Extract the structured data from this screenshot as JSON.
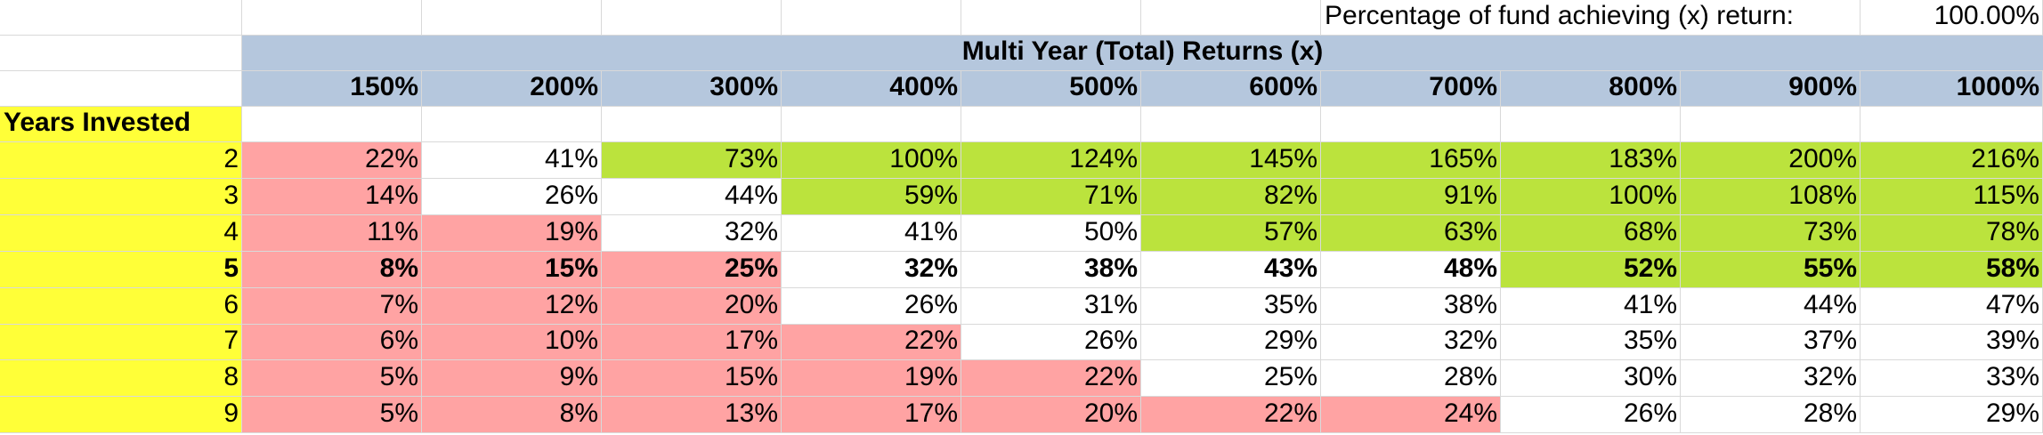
{
  "header": {
    "pct_label": "Percentage of fund achieving (x) return:",
    "pct_value": "100.00%",
    "title": "Multi Year (Total) Returns (x)",
    "row_header": "Years Invested"
  },
  "columns": [
    "150%",
    "200%",
    "300%",
    "400%",
    "500%",
    "600%",
    "700%",
    "800%",
    "900%",
    "1000%"
  ],
  "rows": [
    {
      "year": "2",
      "bold": false,
      "values": [
        "22%",
        "41%",
        "73%",
        "100%",
        "124%",
        "145%",
        "165%",
        "183%",
        "200%",
        "216%"
      ],
      "fills": [
        "pink",
        "white",
        "green",
        "green",
        "green",
        "green",
        "green",
        "green",
        "green",
        "green"
      ]
    },
    {
      "year": "3",
      "bold": false,
      "values": [
        "14%",
        "26%",
        "44%",
        "59%",
        "71%",
        "82%",
        "91%",
        "100%",
        "108%",
        "115%"
      ],
      "fills": [
        "pink",
        "white",
        "white",
        "green",
        "green",
        "green",
        "green",
        "green",
        "green",
        "green"
      ]
    },
    {
      "year": "4",
      "bold": false,
      "values": [
        "11%",
        "19%",
        "32%",
        "41%",
        "50%",
        "57%",
        "63%",
        "68%",
        "73%",
        "78%"
      ],
      "fills": [
        "pink",
        "pink",
        "white",
        "white",
        "white",
        "green",
        "green",
        "green",
        "green",
        "green"
      ]
    },
    {
      "year": "5",
      "bold": true,
      "values": [
        "8%",
        "15%",
        "25%",
        "32%",
        "38%",
        "43%",
        "48%",
        "52%",
        "55%",
        "58%"
      ],
      "fills": [
        "pink",
        "pink",
        "pink",
        "white",
        "white",
        "white",
        "white",
        "green",
        "green",
        "green"
      ]
    },
    {
      "year": "6",
      "bold": false,
      "values": [
        "7%",
        "12%",
        "20%",
        "26%",
        "31%",
        "35%",
        "38%",
        "41%",
        "44%",
        "47%"
      ],
      "fills": [
        "pink",
        "pink",
        "pink",
        "white",
        "white",
        "white",
        "white",
        "white",
        "white",
        "white"
      ]
    },
    {
      "year": "7",
      "bold": false,
      "values": [
        "6%",
        "10%",
        "17%",
        "22%",
        "26%",
        "29%",
        "32%",
        "35%",
        "37%",
        "39%"
      ],
      "fills": [
        "pink",
        "pink",
        "pink",
        "pink",
        "white",
        "white",
        "white",
        "white",
        "white",
        "white"
      ]
    },
    {
      "year": "8",
      "bold": false,
      "values": [
        "5%",
        "9%",
        "15%",
        "19%",
        "22%",
        "25%",
        "28%",
        "30%",
        "32%",
        "33%"
      ],
      "fills": [
        "pink",
        "pink",
        "pink",
        "pink",
        "pink",
        "white",
        "white",
        "white",
        "white",
        "white"
      ]
    },
    {
      "year": "9",
      "bold": false,
      "values": [
        "5%",
        "8%",
        "13%",
        "17%",
        "20%",
        "22%",
        "24%",
        "26%",
        "28%",
        "29%"
      ],
      "fills": [
        "pink",
        "pink",
        "pink",
        "pink",
        "pink",
        "pink",
        "pink",
        "white",
        "white",
        "white"
      ]
    }
  ],
  "colors": {
    "pink": "#ffa3a3",
    "green": "#bbe33d",
    "white": "#ffffff",
    "yellow": "#ffff38",
    "blue": "#b5c7dd"
  }
}
